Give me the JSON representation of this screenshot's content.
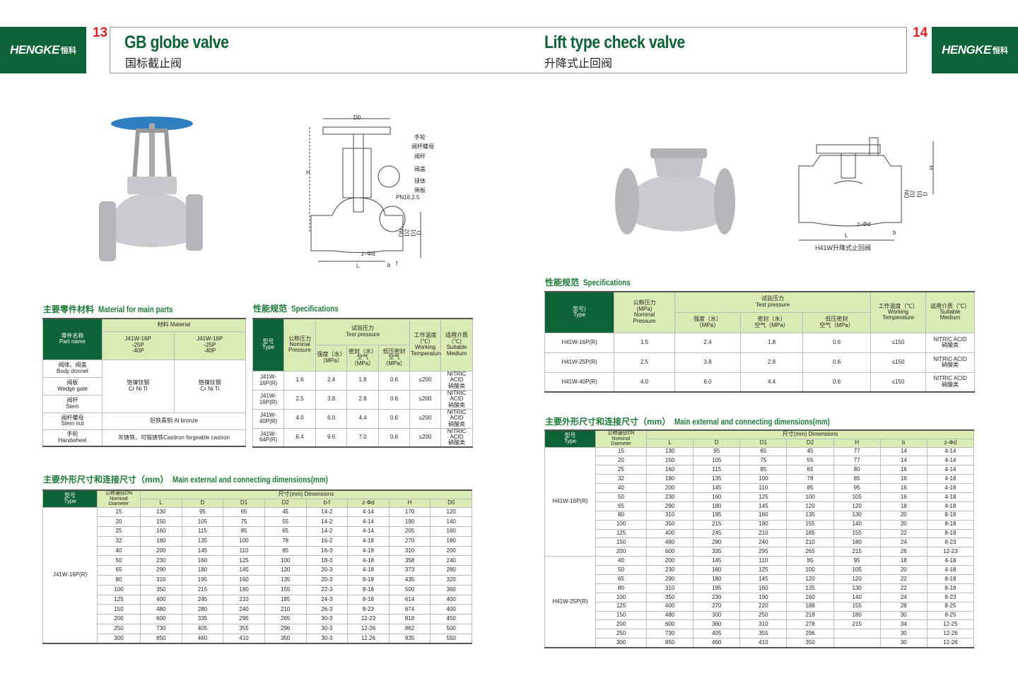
{
  "brand": {
    "name": "HENGKE",
    "cn": "恒科"
  },
  "left_page": {
    "number": "13",
    "title": "GB globe valve",
    "subtitle": "国标截止阀"
  },
  "right_page": {
    "number": "14",
    "title": "Lift type check valve",
    "subtitle": "升降式止回阀"
  },
  "colors": {
    "brand_green": "#0e6336",
    "header_light": "#d9ecb3",
    "page_number": "#d8232a",
    "valve_handwheel": "#2f7fc0"
  },
  "globe_drawing": {
    "labels": [
      "手轮",
      "阀杆螺母",
      "阀杆",
      "阀盖",
      "球体",
      "闸板"
    ],
    "pn": "PN16,2.5",
    "dims": {
      "D0": "D0",
      "H": "H",
      "L": "L",
      "zd": "z−Φd",
      "b": "b",
      "f": "f",
      "D": "D",
      "D1": "D1",
      "D2": "D2",
      "DN": "DN"
    }
  },
  "check_drawing": {
    "caption": "H41W升降式止回阀",
    "dims": {
      "H": "H",
      "L": "L",
      "zd": "z−Φd",
      "b": "b",
      "D": "D",
      "D1": "D1",
      "D2": "D2",
      "DN": "DN"
    }
  },
  "materials": {
    "title_cn": "主要零件材料",
    "title_en": "Material for main parts",
    "h_part_cn": "零件名称",
    "h_part_en": "Part name",
    "h_material": "材料 Material",
    "h_col1": "J41W-16P\n-25P\n-40P",
    "h_col2": "J41W-16P\n-25P\n-40P",
    "parts": [
      {
        "cn": "阀体、阀盖",
        "en": "Body donnet"
      },
      {
        "cn": "阀板",
        "en": "Wedge gate"
      },
      {
        "cn": "阀杆",
        "en": "Stem"
      },
      {
        "cn": "阀杆螺母",
        "en": "Stem nut"
      },
      {
        "cn": "手轮",
        "en": "Handwheel"
      }
    ],
    "crniti_cn": "铬镍钛钢",
    "crniti_en": "Cr Ni Ti",
    "stemnut": "铝铁青铜 Al bronze",
    "handwheel": "灰铸铁、可锻铸铁Castiron forgeable castron"
  },
  "left_specs": {
    "title_cn": "性能规范",
    "title_en": "Specifications",
    "h_type": "型号\nType",
    "h_nominal": "公称压力\nNominal\nPressure",
    "h_test": "试验压力\nTest pressure",
    "h_strength": "强度（水）\n（MPa）",
    "h_seal": "密封（水）\n空气（MPa）",
    "h_low": "低压密封\n空气（MPa）",
    "h_temp": "工作温度\n（℃）\nWorking\nTemperature",
    "h_medium": "适用介质\n（℃）\nSuitable\nMedium",
    "rows": [
      [
        "J41W-16P(R)",
        "1.6",
        "2.4",
        "1.8",
        "0.6",
        "≤200",
        "NITRIC ACID\n硝酸类"
      ],
      [
        "J41W-16P(R)",
        "2.5",
        "3.8",
        "2.8",
        "0.6",
        "≤200",
        "NITRIC ACID\n硝酸类"
      ],
      [
        "J41W-40P(R)",
        "4.0",
        "6.0",
        "4.4",
        "0.6",
        "≤200",
        "NITRIC ACID\n硝酸类"
      ],
      [
        "J41W-64P(R)",
        "6.4",
        "9.6",
        "7.0",
        "0.6",
        "≤200",
        "NITRIC ACID\n硝酸类"
      ]
    ]
  },
  "left_dims": {
    "title_cn": "主要外形尺寸和连接尺寸（mm）",
    "title_en": "Main external and connecting dimensions(mm)",
    "h_type": "型号\nType",
    "h_dn": "公称通径DN\nNominal\nDiameter",
    "h_dims": "尺寸(mm) Dimensions",
    "cols": [
      "L",
      "D",
      "D1",
      "D2",
      "b-f",
      "z-Φd",
      "H",
      "D0"
    ],
    "groups": [
      {
        "type": "J41W-16P(R)",
        "rows": [
          [
            "15",
            "130",
            "95",
            "65",
            "45",
            "14-2",
            "4-14",
            "170",
            "120"
          ],
          [
            "20",
            "150",
            "105",
            "75",
            "55",
            "14-2",
            "4-14",
            "190",
            "140"
          ],
          [
            "25",
            "160",
            "115",
            "85",
            "65",
            "14-2",
            "4-14",
            "205",
            "160"
          ],
          [
            "32",
            "180",
            "135",
            "100",
            "78",
            "16-2",
            "4-18",
            "270",
            "180"
          ],
          [
            "40",
            "200",
            "145",
            "110",
            "85",
            "16-3",
            "4-18",
            "310",
            "200"
          ],
          [
            "50",
            "230",
            "160",
            "125",
            "100",
            "18-3",
            "4-18",
            "358",
            "240"
          ],
          [
            "65",
            "290",
            "180",
            "145",
            "120",
            "20-3",
            "4-18",
            "373",
            "280"
          ],
          [
            "80",
            "310",
            "195",
            "160",
            "135",
            "20-3",
            "8-18",
            "435",
            "320"
          ],
          [
            "100",
            "350",
            "215",
            "180",
            "155",
            "22-3",
            "8-18",
            "500",
            "360"
          ],
          [
            "125",
            "400",
            "245",
            "210",
            "185",
            "24-3",
            "8-18",
            "614",
            "400"
          ],
          [
            "150",
            "480",
            "280",
            "240",
            "210",
            "26-3",
            "8-23",
            "674",
            "400"
          ],
          [
            "200",
            "600",
            "335",
            "295",
            "265",
            "30-3",
            "12-23",
            "818",
            "450"
          ],
          [
            "250",
            "730",
            "405",
            "355",
            "296",
            "30-3",
            "12-26",
            "862",
            "500"
          ],
          [
            "300",
            "850",
            "460",
            "410",
            "350",
            "30-3",
            "12.26",
            "935",
            "550"
          ]
        ]
      }
    ]
  },
  "right_specs": {
    "title_cn": "性能规范",
    "title_en": "Specifications",
    "h_type": "型号)\nType",
    "h_nominal": "公称压力\n(MPa)\nNominal\nPressure",
    "h_test": "试验压力\nTest pressure",
    "h_strength": "强度（水）\n（MPa）",
    "h_seal": "密封（水）\n空气（MPa）",
    "h_low": "低压密封\n空气（MPa）",
    "h_temp": "工作温度（℃）\nWorking\nTemperature",
    "h_medium": "适用介质（℃）\nSuitable\nMedium",
    "rows": [
      [
        "H41W-16P(R)",
        "1.5",
        "2.4",
        "1.8",
        "0.6",
        "≤150",
        "NITRIC ACID\n硝酸类"
      ],
      [
        "H41W-25P(R)",
        "2.5",
        "3.8",
        "2.8",
        "0.6",
        "≤150",
        "NITRIC ACID\n硝酸类"
      ],
      [
        "H41W-40P(R)",
        "4.0",
        "6.0",
        "4.4",
        "0.6",
        "≤150",
        "NITRIC ACID\n硝酸类"
      ]
    ]
  },
  "right_dims": {
    "title_cn": "主要外形尺寸和连接尺寸（mm）",
    "title_en": "Main external and connecting dimensions(mm)",
    "h_type": "型号\nType",
    "h_dn": "公称通径DN\nNominal\nDiameter",
    "h_dims": "尺寸(mm) Dimensions",
    "cols": [
      "L",
      "D",
      "D1",
      "D2",
      "H",
      "b",
      "z-Φd"
    ],
    "groups": [
      {
        "type": "H41W-16P(R)",
        "rows": [
          [
            "15",
            "130",
            "95",
            "65",
            "45",
            "77",
            "14",
            "4-14"
          ],
          [
            "20",
            "150",
            "105",
            "75",
            "55",
            "77",
            "14",
            "4-14"
          ],
          [
            "25",
            "160",
            "115",
            "85",
            "65",
            "80",
            "16",
            "4-14"
          ],
          [
            "32",
            "180",
            "135",
            "100",
            "78",
            "85",
            "16",
            "4-18"
          ],
          [
            "40",
            "200",
            "145",
            "110",
            "85",
            "95",
            "16",
            "4-18"
          ],
          [
            "50",
            "230",
            "160",
            "125",
            "100",
            "105",
            "16",
            "4-18"
          ],
          [
            "65",
            "290",
            "180",
            "145",
            "120",
            "120",
            "18",
            "4-18"
          ],
          [
            "80",
            "310",
            "195",
            "160",
            "135",
            "130",
            "20",
            "8-18"
          ],
          [
            "100",
            "350",
            "215",
            "180",
            "155",
            "140",
            "20",
            "8-18"
          ],
          [
            "125",
            "400",
            "245",
            "210",
            "185",
            "155",
            "22",
            "8-18"
          ],
          [
            "150",
            "480",
            "280",
            "240",
            "210",
            "180",
            "24",
            "8-23"
          ],
          [
            "200",
            "600",
            "335",
            "295",
            "265",
            "215",
            "26",
            "12-23"
          ]
        ]
      },
      {
        "type": "H41W-25P(R)",
        "rows": [
          [
            "40",
            "200",
            "145",
            "110",
            "85",
            "95",
            "18",
            "4-18"
          ],
          [
            "50",
            "230",
            "160",
            "125",
            "100",
            "105",
            "20",
            "4-18"
          ],
          [
            "65",
            "290",
            "180",
            "145",
            "120",
            "120",
            "22",
            "8-18"
          ],
          [
            "80",
            "310",
            "195",
            "160",
            "135",
            "130",
            "22",
            "8-18"
          ],
          [
            "100",
            "350",
            "230",
            "190",
            "160",
            "140",
            "24",
            "8-23"
          ],
          [
            "125",
            "400",
            "270",
            "220",
            "188",
            "155",
            "28",
            "8-25"
          ],
          [
            "150",
            "480",
            "300",
            "250",
            "218",
            "180",
            "30",
            "8-25"
          ],
          [
            "200",
            "600",
            "360",
            "310",
            "278",
            "215",
            "34",
            "12-25"
          ],
          [
            "250",
            "730",
            "405",
            "355",
            "296",
            "",
            "30",
            "12-26"
          ],
          [
            "300",
            "850",
            "460",
            "410",
            "350",
            "",
            "30",
            "12-26"
          ]
        ]
      }
    ]
  }
}
